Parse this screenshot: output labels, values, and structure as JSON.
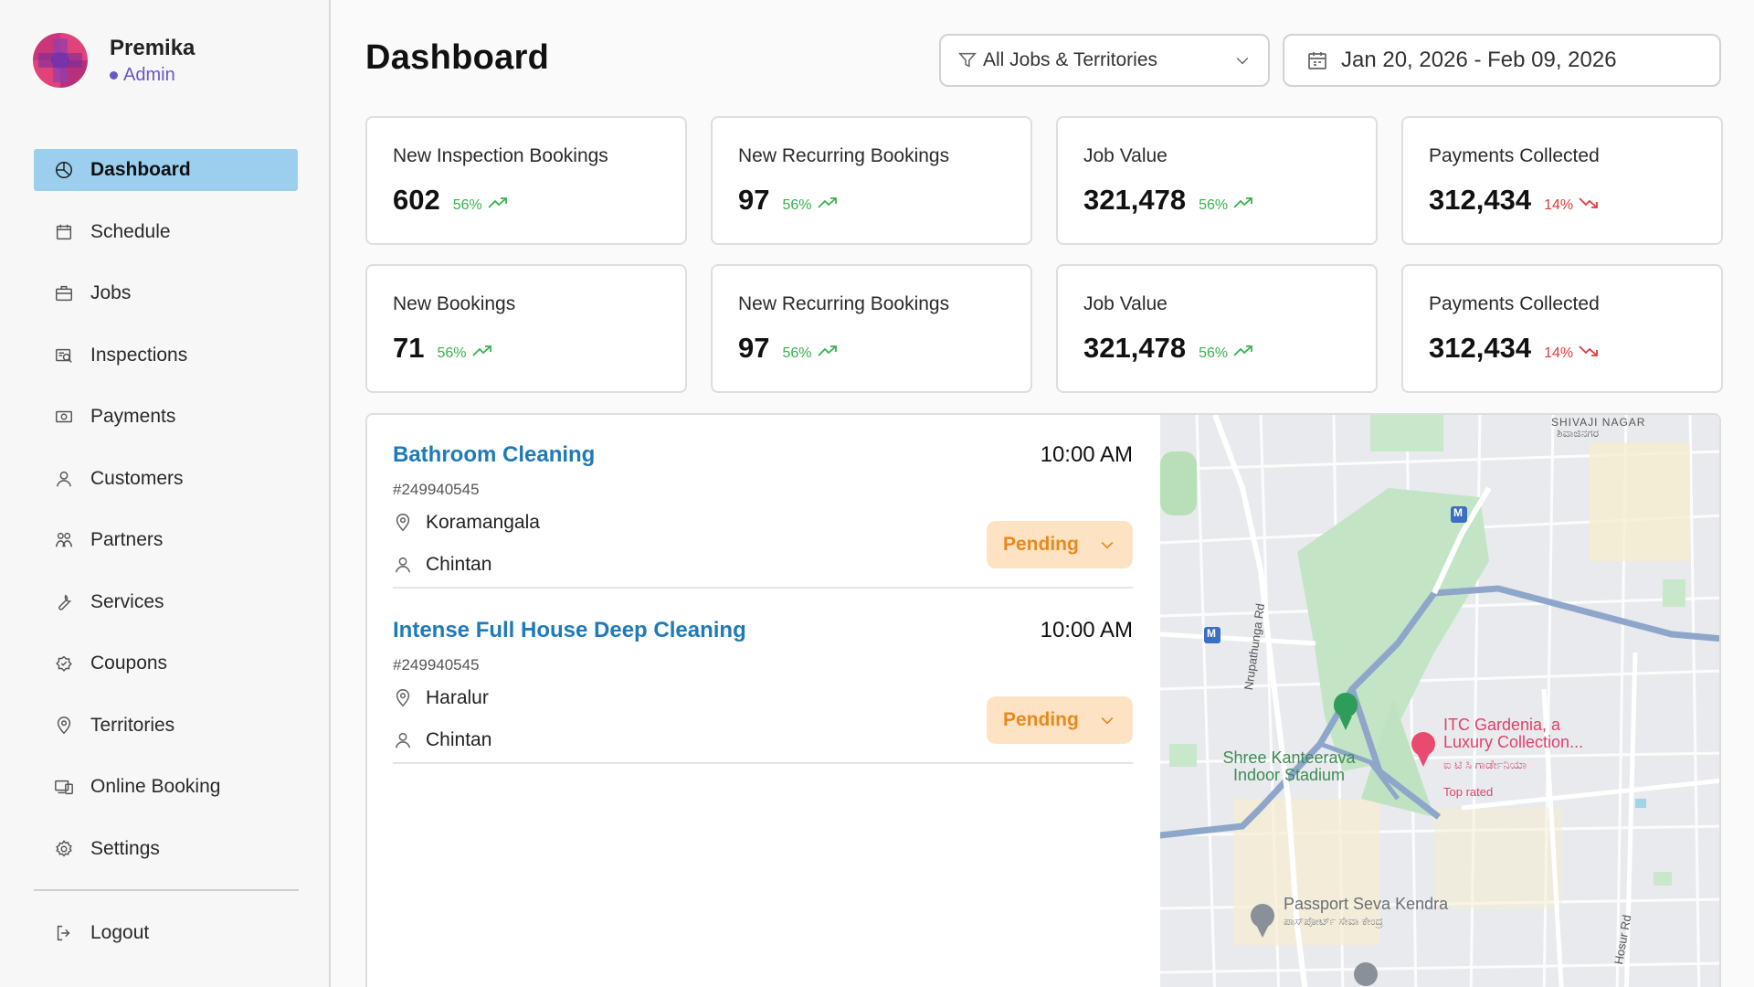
{
  "user": {
    "name": "Premika",
    "role": "Admin"
  },
  "nav": {
    "items": [
      {
        "label": "Dashboard",
        "icon": "dashboard-icon"
      },
      {
        "label": "Schedule",
        "icon": "calendar-icon"
      },
      {
        "label": "Jobs",
        "icon": "briefcase-icon"
      },
      {
        "label": "Inspections",
        "icon": "inspection-icon"
      },
      {
        "label": "Payments",
        "icon": "payments-icon"
      },
      {
        "label": "Customers",
        "icon": "user-icon"
      },
      {
        "label": "Partners",
        "icon": "partners-icon"
      },
      {
        "label": "Services",
        "icon": "wrench-icon"
      },
      {
        "label": "Coupons",
        "icon": "coupon-icon"
      },
      {
        "label": "Territories",
        "icon": "location-icon"
      },
      {
        "label": "Online Booking",
        "icon": "online-booking-icon"
      },
      {
        "label": "Settings",
        "icon": "gear-icon"
      }
    ],
    "active": "Dashboard",
    "logout_label": "Logout"
  },
  "header": {
    "title": "Dashboard",
    "filter_value": "All Jobs & Territories",
    "date_range": "Jan 20, 2026 - Feb 09, 2026"
  },
  "stats": [
    {
      "label": "New Inspection Bookings",
      "value": "602",
      "pct": "56%",
      "trend": "up"
    },
    {
      "label": "New Recurring Bookings",
      "value": "97",
      "pct": "56%",
      "trend": "up"
    },
    {
      "label": "Job Value",
      "value": "321,478",
      "pct": "56%",
      "trend": "up"
    },
    {
      "label": "Payments Collected",
      "value": "312,434",
      "pct": "14%",
      "trend": "down"
    },
    {
      "label": "New Bookings",
      "value": "71",
      "pct": "56%",
      "trend": "up"
    },
    {
      "label": "New Recurring Bookings",
      "value": "97",
      "pct": "56%",
      "trend": "up"
    },
    {
      "label": "Job Value",
      "value": "321,478",
      "pct": "56%",
      "trend": "up"
    },
    {
      "label": "Payments Collected",
      "value": "312,434",
      "pct": "14%",
      "trend": "down"
    }
  ],
  "jobs": [
    {
      "title": "Bathroom Cleaning",
      "id": "#249940545",
      "time": "10:00 AM",
      "location": "Koramangala",
      "customer": "Chintan",
      "status": "Pending"
    },
    {
      "title": "Intense Full House Deep Cleaning",
      "id": "#249940545",
      "time": "10:00 AM",
      "location": "Haralur",
      "customer": "Chintan",
      "status": "Pending"
    }
  ],
  "map": {
    "labels": {
      "area_top": "SHIVAJI NAGAR",
      "area_top_kn": "ಶಿವಾಜಿನಗರ",
      "road_1": "Nrupathunga Rd",
      "road_2": "Hosur Rd",
      "stadium": "Shree Kanteerava Indoor Stadium",
      "hotel": "ITC Gardenia, a Luxury Collection...",
      "hotel_kn": "ಐ ಟಿ ಸಿ ಗಾರ್ಡೇನಿಯಾ",
      "hotel_note": "Top rated",
      "passport": "Passport Seva Kendra",
      "passport_kn": "ಪಾಸ್‌ಪೋರ್ಟ್ ಸೇವಾ ಕೇಂದ್ರ",
      "metro": "M"
    }
  },
  "colors": {
    "active_nav": "#9ccfee",
    "accent_purple": "#6a56c9",
    "job_title": "#1e7bb8",
    "trend_up": "#37b24d",
    "trend_down": "#e03a3a",
    "pending_bg": "#fde3c4",
    "pending_text": "#e78a1e"
  }
}
